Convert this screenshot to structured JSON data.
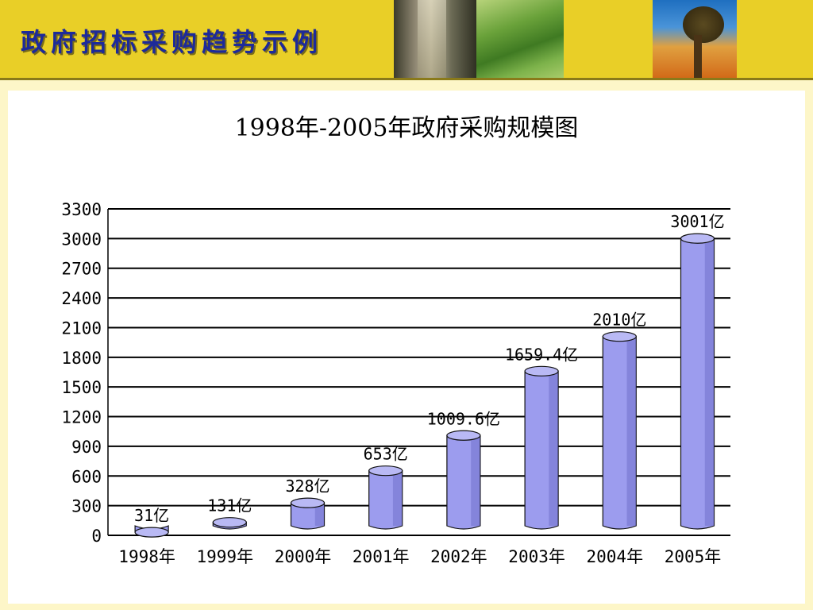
{
  "slide": {
    "title": "政府招标采购趋势示例",
    "photos": [
      "city-window-photo",
      "green-field-photo",
      "tree-sky-photo"
    ]
  },
  "colors": {
    "banner": "#e9cf27",
    "title_text": "#1d2a9a",
    "bar_fill": "#9c9cee",
    "bar_dark": "#5a5ab8",
    "bar_top": "#b9b9f4",
    "gridline": "#000000"
  },
  "chart_data": {
    "type": "bar",
    "title": "1998年-2005年政府采购规模图",
    "xlabel": "",
    "ylabel": "",
    "categories": [
      "1998年",
      "1999年",
      "2000年",
      "2001年",
      "2002年",
      "2003年",
      "2004年",
      "2005年"
    ],
    "values": [
      31,
      131,
      328,
      653,
      1009.6,
      1659.4,
      2010,
      3001
    ],
    "data_labels": [
      "31亿",
      "131亿",
      "328亿",
      "653亿",
      "1009.6亿",
      "1659.4亿",
      "2010亿",
      "3001亿"
    ],
    "ylim": [
      0,
      3300
    ],
    "yticks": [
      0,
      300,
      600,
      900,
      1200,
      1500,
      1800,
      2100,
      2400,
      2700,
      3000,
      3300
    ],
    "grid": true,
    "legend": "none",
    "style": "3d-cylinder"
  }
}
